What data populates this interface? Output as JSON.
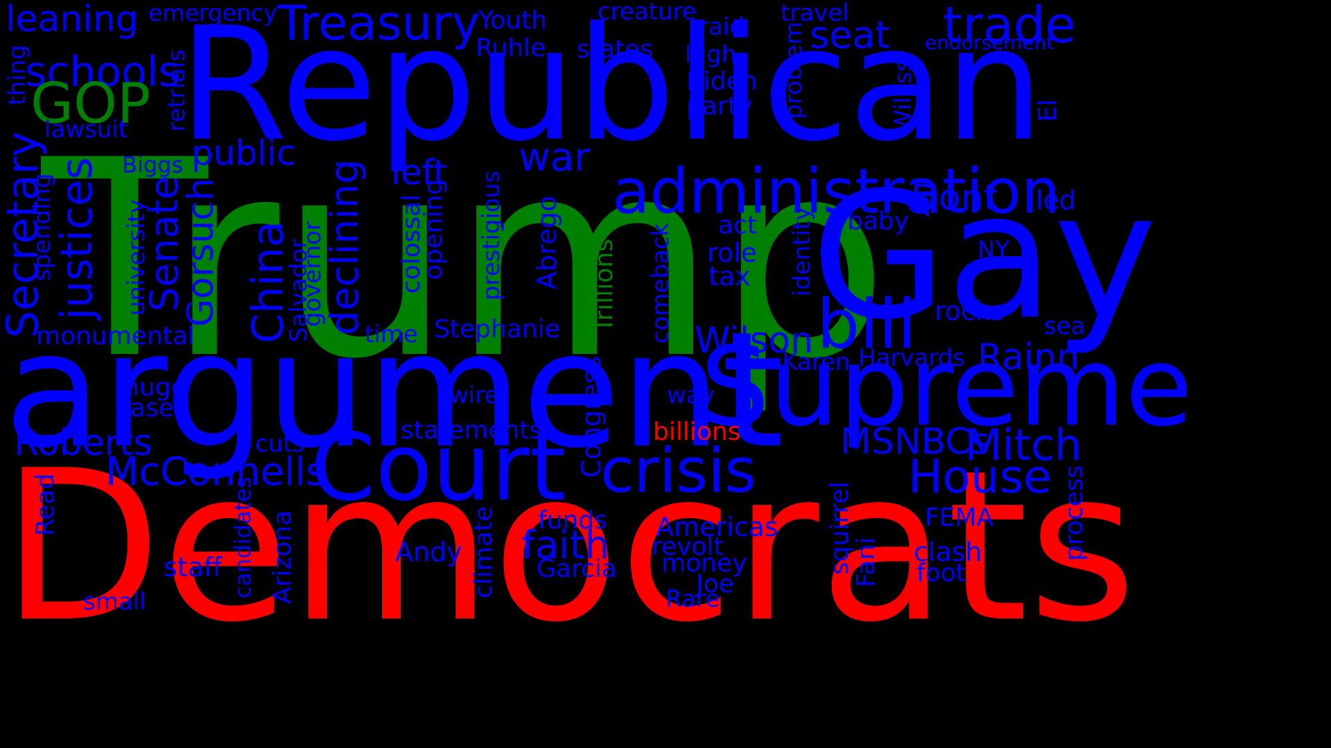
{
  "colors": {
    "background": "#000000",
    "blue": "#0000ff",
    "green": "#008000",
    "red": "#ff0000"
  },
  "words": {
    "trump": "Trump",
    "republican": "Republican",
    "democrats": "Democrats",
    "argument": "argument",
    "gay": "Gay",
    "supreme": "Supreme",
    "court": "Court",
    "administration": "administration",
    "crisis": "crisis",
    "bill": "bill",
    "treasury": "Treasury",
    "trade": "trade",
    "schools": "schools",
    "gop": "GOP",
    "leaning": "leaning",
    "emergency": "emergency",
    "youth": "Youth",
    "ruhle": "Ruhle",
    "creature": "creature",
    "states": "states",
    "raid": "raid",
    "high": "high",
    "travel": "travel",
    "seat": "seat",
    "endorsement": "endorsement",
    "biden": "Biden",
    "party": "party",
    "lawsuit": "lawsuit",
    "public": "public",
    "war": "war",
    "left": "left",
    "biggs": "Biggs",
    "dont": "Dont",
    "led": "led",
    "baby": "baby",
    "act": "act",
    "role": "role",
    "tax": "tax",
    "ny": "NY",
    "rocks": "rocks",
    "sea": "sea",
    "wilson": "Wilson",
    "rainn": "Rainn",
    "harvards": "Harvards",
    "karen": "Karen",
    "monumental": "monumental",
    "time": "time",
    "stephanie": "Stephanie",
    "huge": "huge",
    "case": "case",
    "wire": "wire",
    "way": "way",
    "roberts": "Roberts",
    "mcconnells": "McConnells",
    "statements": "statements",
    "billions": "billions",
    "msnbcs": "MSNBCs",
    "mitch": "Mitch",
    "cuts": "cuts",
    "house": "House",
    "funds": "funds",
    "americas": "Americas",
    "fema": "FEMA",
    "faith": "faith",
    "revolt": "revolt",
    "clash": "clash",
    "andy": "Andy",
    "money": "money",
    "foot": "foot",
    "staff": "staff",
    "garcia": "Garcia",
    "joe": "Joe",
    "small": "small",
    "rare": "Rare",
    "thing": "thing",
    "secretary": "Secretary",
    "justices": "justices",
    "spending": "spending",
    "university": "university",
    "senate": "Senate",
    "gorsuch": "Gorsuch",
    "china": "China",
    "salvador": "Salvador",
    "governor": "governor",
    "declining": "declining",
    "colossal": "colossal",
    "opening": "opening",
    "prestigious": "prestigious",
    "abrego": "Abrego",
    "trillions": "Trillions",
    "comeback": "comeback",
    "identity": "identity",
    "problem": "problem",
    "williss": "Williss",
    "el": "El",
    "retrials": "retrials",
    "congress": "Congress",
    "read": "Read",
    "candidates": "candidates",
    "arizona": "Arizona",
    "climate": "climate",
    "squirrel": "squirrel",
    "fani": "Fani",
    "process": "process"
  }
}
